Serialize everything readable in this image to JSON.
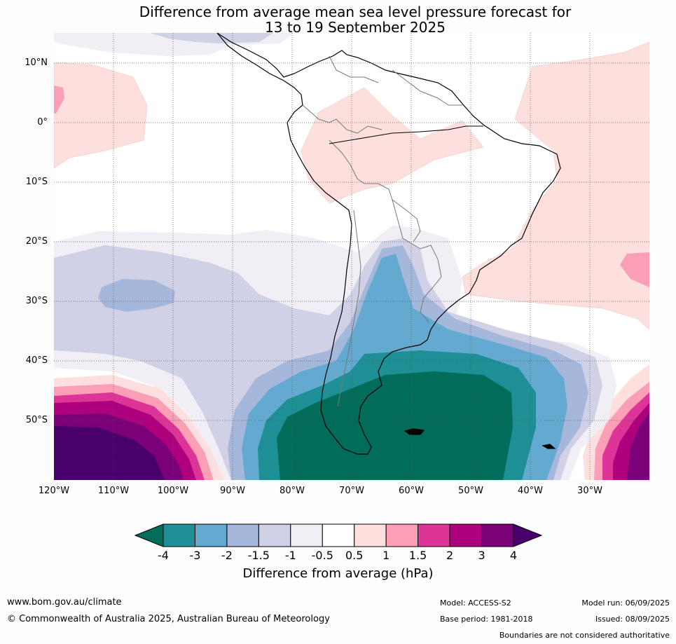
{
  "title_line1": "Difference from average mean sea level pressure forecast for",
  "title_line2": "13 to 19 September 2025",
  "lat_labels": [
    "10°N",
    "0°",
    "10°S",
    "20°S",
    "30°S",
    "40°S",
    "50°S"
  ],
  "lon_labels": [
    "120°W",
    "110°W",
    "100°W",
    "90°W",
    "80°W",
    "70°W",
    "60°W",
    "50°W",
    "40°W",
    "30°W"
  ],
  "colorbar": {
    "ticks": [
      "-4",
      "-3",
      "-2",
      "-1.5",
      "-1",
      "-0.5",
      "0.5",
      "1",
      "1.5",
      "2",
      "3",
      "4"
    ],
    "colors": [
      "#1e9095",
      "#64a9d0",
      "#a5b8db",
      "#d0d1e6",
      "#f1eef5",
      "#ffffff",
      "#fde0dd",
      "#fa9fb5",
      "#dd3497",
      "#ae017e",
      "#7a0177"
    ],
    "under_color": "#016c59",
    "over_color": "#49006a",
    "label": "Difference from average (hPa)"
  },
  "footer": {
    "website": "www.bom.gov.au/climate",
    "copyright": "© Commonwealth of Australia 2025, Australian Bureau of Meteorology",
    "model": "Model: ACCESS-S2",
    "base_period": "Base period: 1981-2018",
    "model_run": "Model run: 06/09/2025",
    "issued": "Issued: 08/09/2025",
    "disclaimer": "Boundaries are not considered authoritative"
  }
}
